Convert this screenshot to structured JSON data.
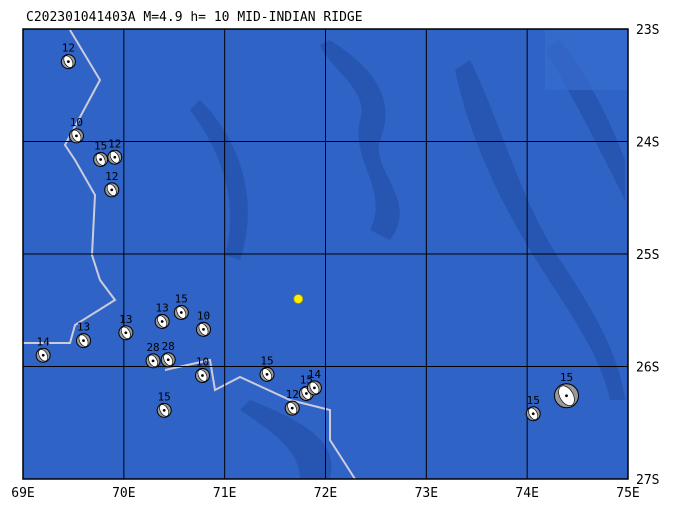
{
  "title": "C202301041403A M=4.9 h= 10 MID-INDIAN RIDGE",
  "map": {
    "lon_ticks": [
      {
        "value": 69,
        "label": "69E"
      },
      {
        "value": 70,
        "label": "70E"
      },
      {
        "value": 71,
        "label": "71E"
      },
      {
        "value": 72,
        "label": "72E"
      },
      {
        "value": 73,
        "label": "73E"
      },
      {
        "value": 74,
        "label": "74E"
      },
      {
        "value": 75,
        "label": "75E"
      }
    ],
    "lat_ticks": [
      {
        "value": 23,
        "label": "23S"
      },
      {
        "value": 24,
        "label": "24S"
      },
      {
        "value": 25,
        "label": "25S"
      },
      {
        "value": 26,
        "label": "26S"
      },
      {
        "value": 27,
        "label": "27S"
      }
    ],
    "epicenter": {
      "lon": 71.73,
      "lat": 25.4
    },
    "events": [
      {
        "lon": 69.45,
        "lat": 23.29,
        "depth": "12"
      },
      {
        "lon": 69.53,
        "lat": 23.95,
        "depth": "10"
      },
      {
        "lon": 69.77,
        "lat": 24.16,
        "depth": "15"
      },
      {
        "lon": 69.91,
        "lat": 24.14,
        "depth": "12"
      },
      {
        "lon": 69.88,
        "lat": 24.43,
        "depth": "12"
      },
      {
        "lon": 69.2,
        "lat": 25.9,
        "depth": "14"
      },
      {
        "lon": 69.6,
        "lat": 25.77,
        "depth": "13"
      },
      {
        "lon": 70.02,
        "lat": 25.7,
        "depth": "13"
      },
      {
        "lon": 70.38,
        "lat": 25.6,
        "depth": "13"
      },
      {
        "lon": 70.57,
        "lat": 25.52,
        "depth": "15"
      },
      {
        "lon": 70.79,
        "lat": 25.67,
        "depth": "10"
      },
      {
        "lon": 70.29,
        "lat": 25.95,
        "depth": "28"
      },
      {
        "lon": 70.44,
        "lat": 25.94,
        "depth": "28"
      },
      {
        "lon": 70.78,
        "lat": 26.08,
        "depth": "10"
      },
      {
        "lon": 71.42,
        "lat": 26.07,
        "depth": "15"
      },
      {
        "lon": 71.67,
        "lat": 26.37,
        "depth": "12"
      },
      {
        "lon": 71.81,
        "lat": 26.24,
        "depth": "15"
      },
      {
        "lon": 71.89,
        "lat": 26.19,
        "depth": "14"
      },
      {
        "lon": 70.4,
        "lat": 26.39,
        "depth": "15"
      },
      {
        "lon": 74.06,
        "lat": 26.42,
        "depth": "15"
      },
      {
        "lon": 74.39,
        "lat": 26.26,
        "depth": "15"
      }
    ]
  }
}
